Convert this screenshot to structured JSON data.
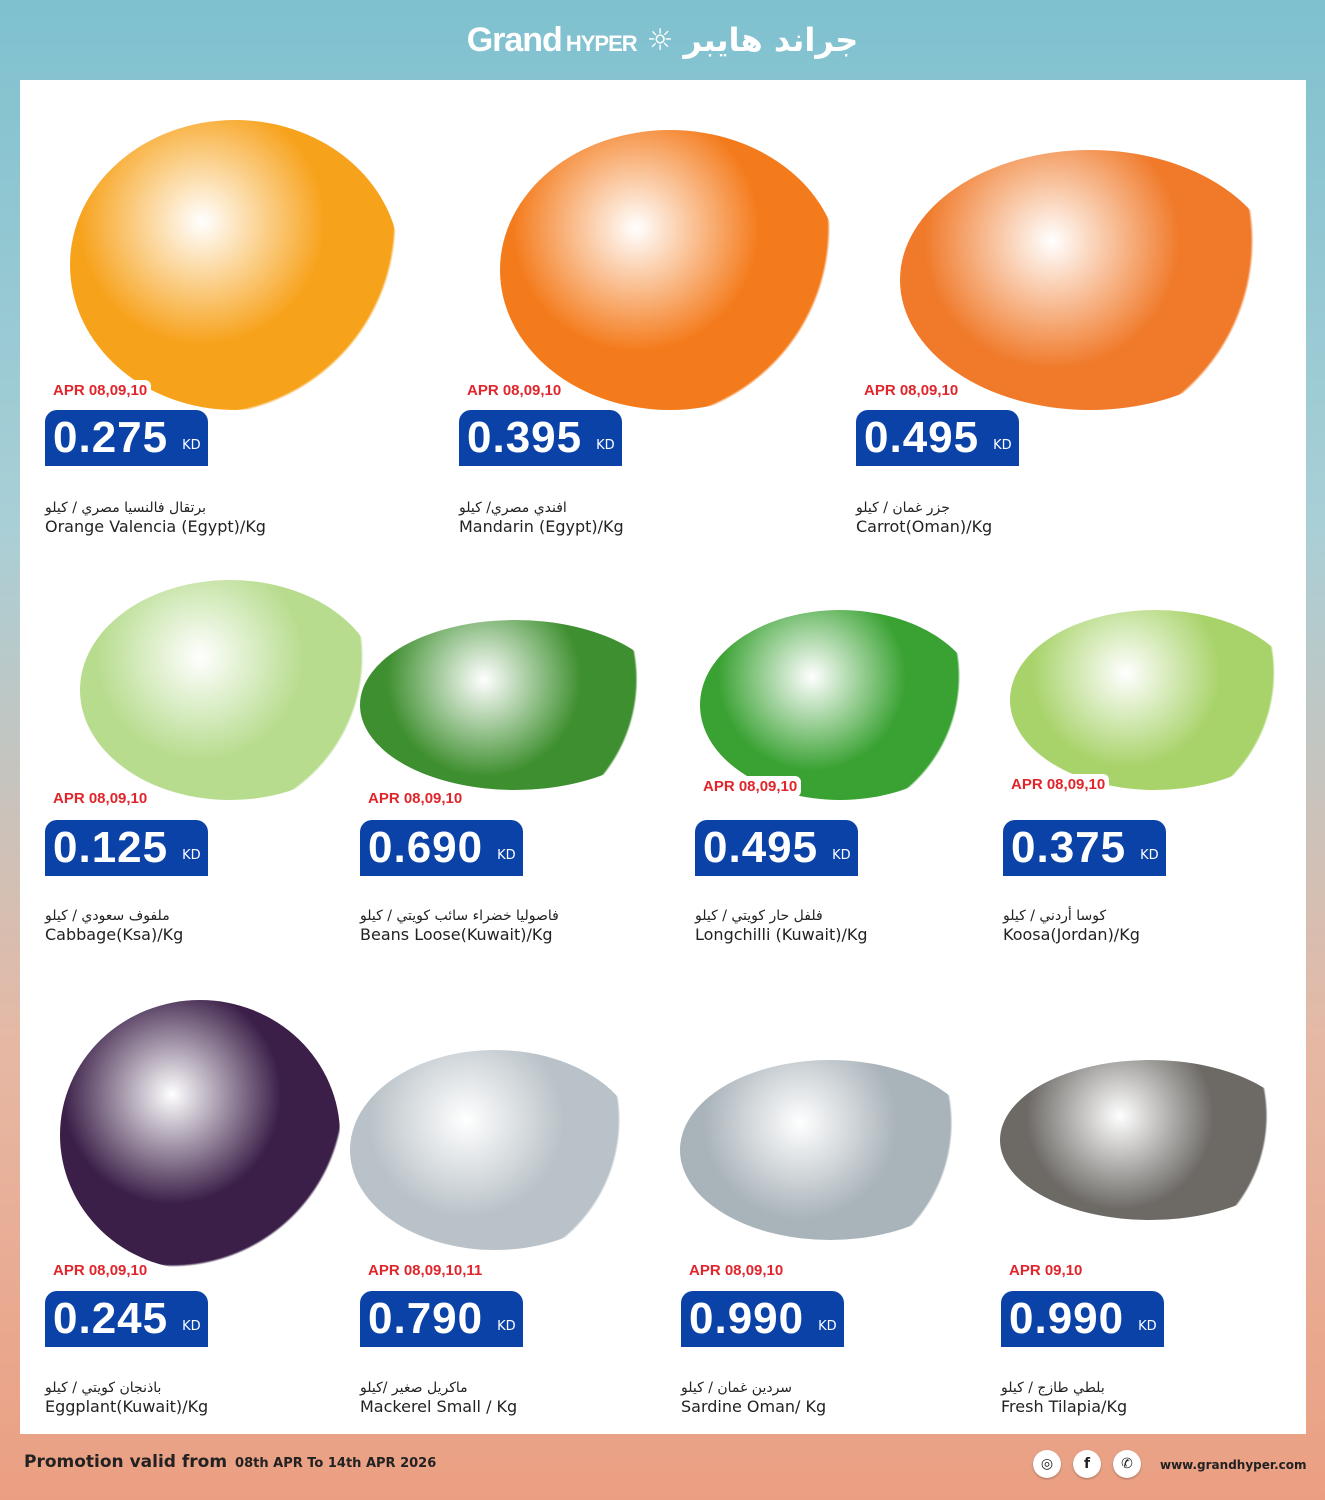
{
  "header": {
    "brand_en": "Grand",
    "brand_en_sub": "HYPER",
    "brand_ar": "جراند هايبر"
  },
  "currency": "KD",
  "colors": {
    "price_bg": "#0a42a8",
    "date_text": "#e0262c"
  },
  "products": [
    {
      "date": "APR 08,09,10",
      "price": "0.275",
      "ar": "برتقال فالنسيا  مصري / كيلو",
      "en": "Orange Valencia (Egypt)/Kg",
      "color": "#f7a21b"
    },
    {
      "date": "APR 08,09,10",
      "price": "0.395",
      "ar": "افندي مصري/ كيلو",
      "en": "Mandarin (Egypt)/Kg",
      "color": "#f47b1c"
    },
    {
      "date": "APR 08,09,10",
      "price": "0.495",
      "ar": "جزر غمان / كيلو",
      "en": "Carrot(Oman)/Kg",
      "color": "#f07a2a"
    },
    {
      "date": "APR 08,09,10",
      "price": "0.125",
      "ar": "ملفوف سعودي / كيلو",
      "en": "Cabbage(Ksa)/Kg",
      "color": "#b7dc8e"
    },
    {
      "date": "APR 08,09,10",
      "price": "0.690",
      "ar": "فاصوليا خضراء سائب كويتي / كيلو",
      "en": "Beans Loose(Kuwait)/Kg",
      "color": "#3e8f2f"
    },
    {
      "date": "APR 08,09,10",
      "price": "0.495",
      "ar": "فلفل حار كويتي / كيلو",
      "en": "Longchilli (Kuwait)/Kg",
      "color": "#3aa233"
    },
    {
      "date": "APR 08,09,10",
      "price": "0.375",
      "ar": "كوسا أردني / كيلو",
      "en": "Koosa(Jordan)/Kg",
      "color": "#a8d36a"
    },
    {
      "date": "APR 08,09,10",
      "price": "0.245",
      "ar": "باذنجان كويتي / كيلو",
      "en": "Eggplant(Kuwait)/Kg",
      "color": "#3b1f48"
    },
    {
      "date": "APR 08,09,10,11",
      "price": "0.790",
      "ar": "ماكريل صغير /كيلو",
      "en": "Mackerel Small / Kg",
      "color": "#b9c2c8"
    },
    {
      "date": "APR 08,09,10",
      "price": "0.990",
      "ar": "سردين غمان / كيلو",
      "en": "Sardine Oman/ Kg",
      "color": "#a9b3ba"
    },
    {
      "date": "APR 09,10",
      "price": "0.990",
      "ar": "بلطي طازج / كيلو",
      "en": "Fresh Tilapia/Kg",
      "color": "#6d6a66"
    }
  ],
  "footer": {
    "promo_label": "Promotion valid from",
    "promo_dates": "08th APR  To 14th APR 2026",
    "website": "www.grandhyper.com",
    "social": [
      "instagram-icon",
      "facebook-icon",
      "whatsapp-icon"
    ]
  }
}
